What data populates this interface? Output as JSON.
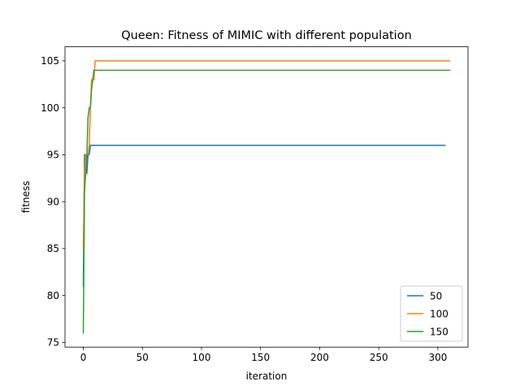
{
  "chart_data": {
    "type": "line",
    "title": "Queen: Fitness of MIMIC with different population",
    "xlabel": "iteration",
    "ylabel": "fitness",
    "xlim": [
      -15.5,
      325.5
    ],
    "ylim": [
      74.5,
      106.5
    ],
    "xticks": [
      0,
      50,
      100,
      150,
      200,
      250,
      300
    ],
    "yticks": [
      75,
      80,
      85,
      90,
      95,
      100,
      105
    ],
    "grid": false,
    "legend_position": "bottom-right",
    "series": [
      {
        "name": "50",
        "color": "#1f77b4",
        "x": [
          0,
          1,
          2,
          3,
          4,
          5,
          6,
          10,
          306
        ],
        "y": [
          81,
          95,
          95,
          93,
          95,
          95,
          96,
          96,
          96
        ]
      },
      {
        "name": "100",
        "color": "#ff7f0e",
        "x": [
          0,
          1,
          2,
          3,
          4,
          5,
          6,
          7,
          8,
          9,
          10,
          310
        ],
        "y": [
          85,
          93,
          95,
          95,
          95,
          96,
          100,
          103,
          103,
          103,
          105,
          105
        ]
      },
      {
        "name": "150",
        "color": "#2ca02c",
        "x": [
          0,
          1,
          2,
          3,
          4,
          5,
          6,
          7,
          8,
          9,
          10,
          310
        ],
        "y": [
          76,
          91,
          93,
          95,
          99,
          100,
          100,
          102,
          103,
          104,
          104,
          104
        ]
      }
    ]
  }
}
